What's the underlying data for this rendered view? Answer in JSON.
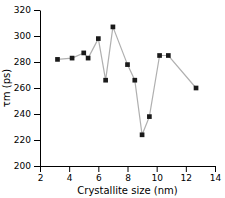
{
  "chart_data": {
    "type": "line",
    "x": [
      3.2,
      4.2,
      5.0,
      5.3,
      6.0,
      6.5,
      7.0,
      8.0,
      8.5,
      9.0,
      9.5,
      10.2,
      10.8,
      12.7
    ],
    "values": [
      282,
      283,
      287,
      283,
      298,
      266,
      307,
      278,
      266,
      224,
      238,
      285,
      285,
      260
    ],
    "color": "#1a1a1a",
    "marker": "square",
    "xlabel": "Crystallite size (nm)",
    "ylabel": "τm (ps)",
    "xlim": [
      2,
      14
    ],
    "ylim": [
      200,
      320
    ],
    "xticks": [
      2,
      4,
      6,
      8,
      10,
      12,
      14
    ],
    "yticks": [
      200,
      220,
      240,
      260,
      280,
      300,
      320
    ],
    "grid": false
  }
}
